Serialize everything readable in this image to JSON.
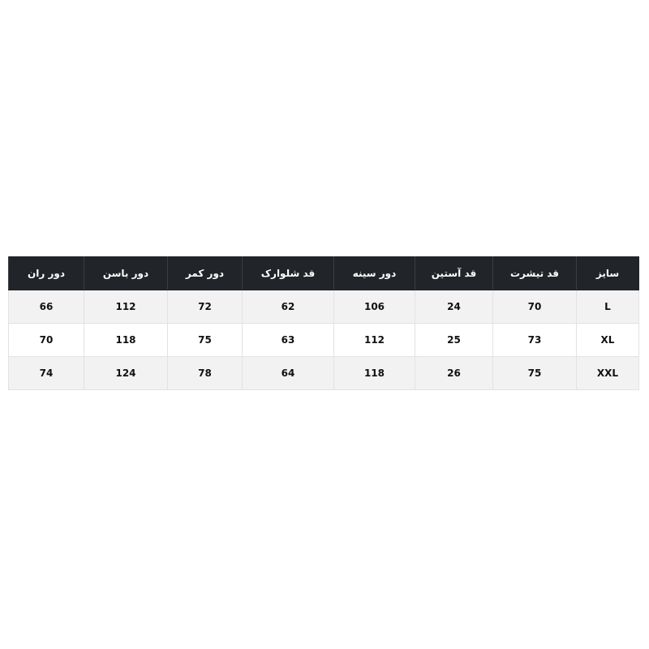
{
  "table": {
    "header": [
      "سایز",
      "قد تیشرت",
      "قد آستین",
      "دور سینه",
      "قد شلوارک",
      "دور کمر",
      "دور باسن",
      "دور ران"
    ],
    "rows": [
      [
        "L",
        70,
        24,
        106,
        62,
        72,
        112,
        66
      ],
      [
        "XL",
        73,
        25,
        112,
        63,
        75,
        118,
        70
      ],
      [
        "XXL",
        75,
        26,
        118,
        64,
        78,
        124,
        74
      ]
    ]
  }
}
